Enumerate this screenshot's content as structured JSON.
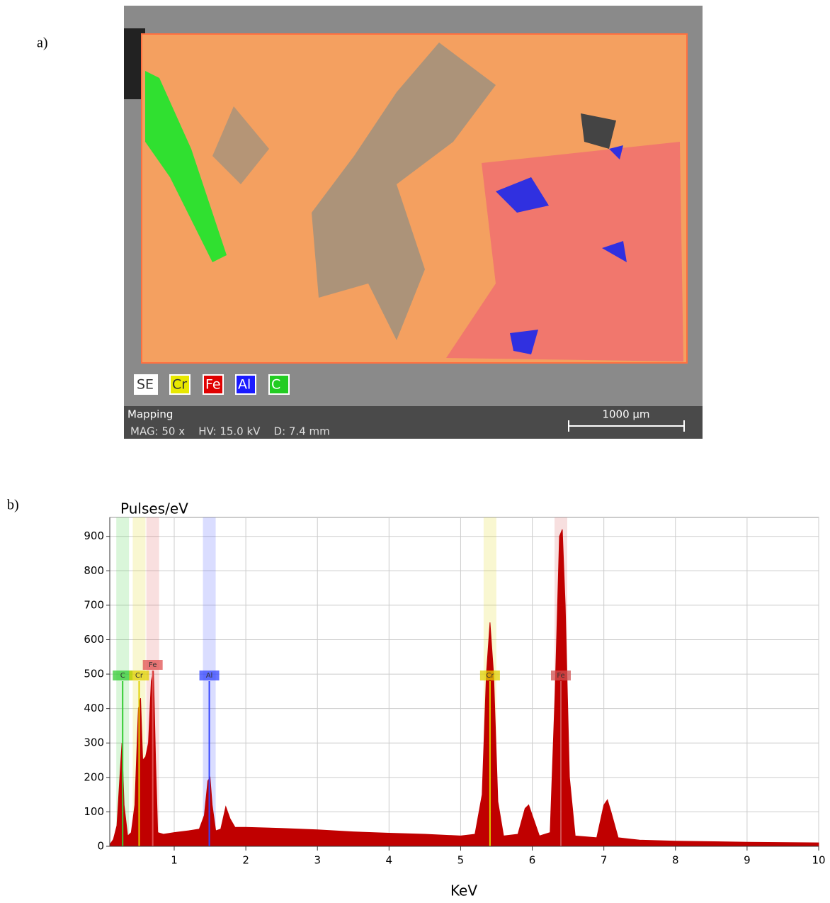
{
  "image_panel": {
    "label": "a)",
    "legend": [
      {
        "label": "SE",
        "color": "#ffffff"
      },
      {
        "label": "Cr",
        "color": "#e8e800"
      },
      {
        "label": "Fe",
        "color": "#e00000"
      },
      {
        "label": "Al",
        "color": "#1a1aff"
      },
      {
        "label": "C",
        "color": "#22cc22"
      }
    ],
    "info_title": "Mapping",
    "info": "MAG: 50 x    HV: 15.0 kV    D: 7.4 mm",
    "scale_bar": "1000 µm"
  },
  "chart_data": {
    "type": "area",
    "panel_label": "b)",
    "y_label": "Pulses/eV",
    "x_label": "KeV",
    "color": "#c00000",
    "x": [
      0.1,
      0.15,
      0.2,
      0.24,
      0.27,
      0.3,
      0.35,
      0.4,
      0.45,
      0.5,
      0.53,
      0.56,
      0.6,
      0.64,
      0.68,
      0.71,
      0.74,
      0.77,
      0.85,
      1.0,
      1.2,
      1.35,
      1.42,
      1.47,
      1.5,
      1.53,
      1.58,
      1.65,
      1.72,
      1.78,
      1.85,
      2.0,
      2.5,
      3.0,
      3.5,
      4.0,
      4.5,
      5.0,
      5.2,
      5.3,
      5.36,
      5.41,
      5.46,
      5.52,
      5.6,
      5.8,
      5.9,
      5.95,
      6.0,
      6.1,
      6.25,
      6.32,
      6.38,
      6.42,
      6.46,
      6.52,
      6.6,
      6.9,
      7.0,
      7.05,
      7.1,
      7.2,
      7.5,
      8,
      9,
      10
    ],
    "values": [
      5,
      20,
      60,
      200,
      300,
      120,
      30,
      40,
      120,
      400,
      430,
      250,
      260,
      300,
      480,
      510,
      250,
      40,
      35,
      40,
      45,
      50,
      90,
      190,
      200,
      120,
      45,
      50,
      115,
      80,
      55,
      55,
      52,
      48,
      42,
      38,
      35,
      30,
      35,
      150,
      500,
      650,
      500,
      130,
      30,
      35,
      110,
      120,
      90,
      30,
      40,
      450,
      900,
      920,
      700,
      200,
      30,
      25,
      120,
      135,
      100,
      25,
      18,
      15,
      12,
      10
    ],
    "markers": [
      {
        "label": "C",
        "x": 0.28,
        "color": "#33cc33"
      },
      {
        "label": "Cr",
        "x": 0.51,
        "color": "#e0d000"
      },
      {
        "label": "Fe",
        "x": 0.7,
        "color": "#e05050"
      },
      {
        "label": "Al",
        "x": 1.49,
        "color": "#3344ff"
      },
      {
        "label": "Cr",
        "x": 5.41,
        "color": "#e0d000"
      },
      {
        "label": "Fe",
        "x": 6.4,
        "color": "#d05050"
      }
    ],
    "xlim": [
      0.1,
      10
    ],
    "ylim": [
      0,
      955
    ],
    "xticks": [
      1,
      2,
      3,
      4,
      5,
      6,
      7,
      8,
      9,
      10
    ],
    "yticks": [
      0,
      100,
      200,
      300,
      400,
      500,
      600,
      700,
      800,
      900
    ],
    "grid": true
  }
}
